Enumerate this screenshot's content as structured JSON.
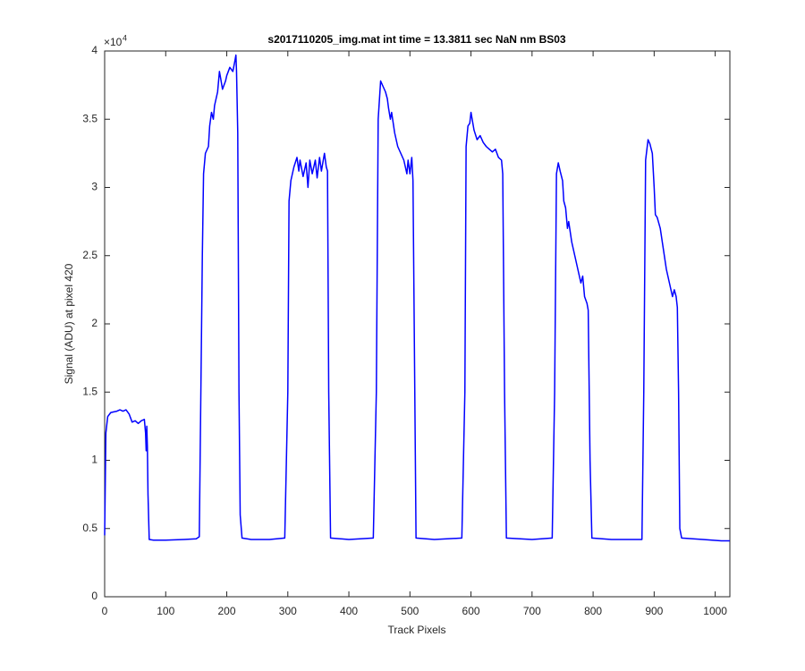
{
  "chart_data": {
    "type": "line",
    "title": "s2017110205_img.mat int time = 13.3811 sec  NaN nm BS03",
    "x_label": "Track Pixels",
    "y_label": "Signal (ADU) at pixel 420",
    "y_multiplier": "×10",
    "y_multiplier_exponent": "4",
    "xlim": [
      0,
      1024
    ],
    "xticks": [
      0,
      100,
      200,
      300,
      400,
      500,
      600,
      700,
      800,
      900,
      1000
    ],
    "ylim": [
      0,
      4
    ],
    "yticks": [
      0,
      0.5,
      1,
      1.5,
      2,
      2.5,
      3,
      3.5,
      4
    ],
    "series": [
      {
        "color": "#0000ff",
        "x": [
          0,
          2,
          5,
          10,
          20,
          25,
          30,
          35,
          40,
          45,
          50,
          55,
          60,
          65,
          67,
          68,
          69,
          70,
          71,
          73,
          80,
          100,
          130,
          150,
          155,
          160,
          162,
          165,
          170,
          172,
          175,
          178,
          180,
          185,
          188,
          190,
          193,
          198,
          200,
          205,
          210,
          213,
          215,
          216,
          218,
          220,
          222,
          225,
          240,
          270,
          295,
          300,
          302,
          305,
          310,
          315,
          318,
          320,
          325,
          330,
          333,
          336,
          340,
          345,
          348,
          352,
          355,
          360,
          363,
          365,
          367,
          370,
          400,
          440,
          445,
          448,
          452,
          455,
          460,
          463,
          465,
          468,
          470,
          475,
          480,
          485,
          490,
          495,
          497,
          500,
          503,
          505,
          507,
          510,
          540,
          585,
          590,
          592,
          595,
          598,
          600,
          605,
          610,
          615,
          620,
          625,
          630,
          635,
          640,
          645,
          650,
          652,
          655,
          658,
          700,
          733,
          737,
          740,
          743,
          746,
          750,
          752,
          755,
          758,
          760,
          765,
          770,
          775,
          780,
          783,
          786,
          790,
          792,
          795,
          798,
          830,
          880,
          883,
          886,
          890,
          893,
          897,
          900,
          902,
          905,
          910,
          915,
          920,
          925,
          930,
          933,
          936,
          938,
          940,
          942,
          945,
          980,
          1010,
          1024
        ],
        "values": [
          0.45,
          1.2,
          1.32,
          1.35,
          1.36,
          1.37,
          1.36,
          1.37,
          1.34,
          1.28,
          1.29,
          1.27,
          1.29,
          1.3,
          1.2,
          1.07,
          1.25,
          1.1,
          0.75,
          0.42,
          0.415,
          0.415,
          0.42,
          0.425,
          0.44,
          2.5,
          3.1,
          3.25,
          3.3,
          3.45,
          3.55,
          3.5,
          3.6,
          3.7,
          3.85,
          3.8,
          3.72,
          3.78,
          3.82,
          3.88,
          3.85,
          3.92,
          3.97,
          3.85,
          3.4,
          1.5,
          0.6,
          0.43,
          0.42,
          0.42,
          0.43,
          1.5,
          2.9,
          3.05,
          3.15,
          3.22,
          3.12,
          3.2,
          3.08,
          3.18,
          3.0,
          3.2,
          3.1,
          3.2,
          3.07,
          3.22,
          3.12,
          3.25,
          3.15,
          3.12,
          1.5,
          0.43,
          0.42,
          0.43,
          1.5,
          3.5,
          3.78,
          3.75,
          3.7,
          3.65,
          3.58,
          3.5,
          3.55,
          3.4,
          3.3,
          3.25,
          3.2,
          3.1,
          3.2,
          3.1,
          3.22,
          3.05,
          2.0,
          0.43,
          0.42,
          0.43,
          1.5,
          3.3,
          3.45,
          3.47,
          3.55,
          3.42,
          3.35,
          3.38,
          3.33,
          3.3,
          3.28,
          3.26,
          3.28,
          3.22,
          3.2,
          3.1,
          1.5,
          0.43,
          0.42,
          0.43,
          1.5,
          3.1,
          3.18,
          3.12,
          3.05,
          2.9,
          2.85,
          2.7,
          2.75,
          2.6,
          2.5,
          2.4,
          2.3,
          2.35,
          2.2,
          2.15,
          2.1,
          1.0,
          0.43,
          0.42,
          0.42,
          1.5,
          3.2,
          3.35,
          3.32,
          3.25,
          3.0,
          2.8,
          2.78,
          2.7,
          2.55,
          2.4,
          2.3,
          2.2,
          2.25,
          2.2,
          2.12,
          1.5,
          0.5,
          0.43,
          0.42,
          0.41,
          0.41
        ]
      }
    ]
  }
}
